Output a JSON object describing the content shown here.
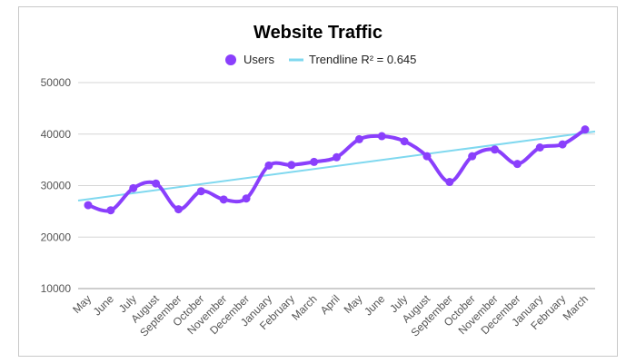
{
  "chart_data": {
    "type": "line",
    "title": "Website Traffic",
    "xlabel": "",
    "ylabel": "",
    "categories": [
      "May",
      "June",
      "July",
      "August",
      "September",
      "October",
      "November",
      "December",
      "January",
      "February",
      "March",
      "April",
      "May",
      "June",
      "July",
      "August",
      "September",
      "October",
      "November",
      "December",
      "January",
      "February",
      "March"
    ],
    "series": [
      {
        "name": "Users",
        "color": "#8a3ffc",
        "values": [
          26200,
          25200,
          29500,
          30400,
          25400,
          28900,
          27300,
          27500,
          33900,
          34000,
          34600,
          35500,
          39000,
          39600,
          38600,
          35700,
          30700,
          35700,
          37000,
          34200,
          37400,
          38000,
          40900
        ]
      }
    ],
    "trendline": {
      "label": "Trendline R² = 0.645",
      "color": "#7fd8ef",
      "start": 27100,
      "end": 40500
    },
    "ylim": [
      10000,
      50000
    ],
    "yticks": [
      10000,
      20000,
      30000,
      40000,
      50000
    ],
    "ytick_labels": [
      "10000",
      "20000",
      "30000",
      "40000",
      "50000"
    ],
    "grid": true,
    "legend_position": "top"
  }
}
